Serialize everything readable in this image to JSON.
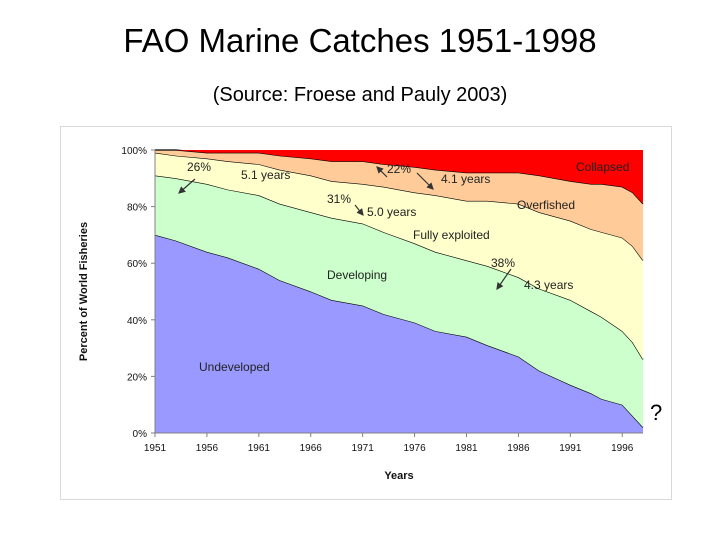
{
  "slide": {
    "title": "FAO Marine Catches 1951-1998",
    "subtitle": "(Source: Froese and Pauly 2003)",
    "question_mark": "?"
  },
  "chart_data": {
    "type": "area",
    "stacked": true,
    "x": [
      1951,
      1953,
      1956,
      1958,
      1961,
      1963,
      1966,
      1968,
      1971,
      1973,
      1976,
      1978,
      1981,
      1983,
      1986,
      1988,
      1991,
      1993,
      1994,
      1996,
      1997,
      1998
    ],
    "series": [
      {
        "name": "Undeveloped",
        "color": "#9999ff",
        "values": [
          70,
          68,
          64,
          62,
          58,
          54,
          50,
          47,
          45,
          42,
          39,
          36,
          34,
          31,
          27,
          22,
          17,
          14,
          12,
          10,
          6,
          2
        ]
      },
      {
        "name": "Developing",
        "color": "#ccffcc",
        "values": [
          21,
          22,
          24,
          24,
          26,
          27,
          28,
          29,
          29,
          29,
          28,
          28,
          27,
          28,
          28,
          29,
          30,
          29,
          29,
          26,
          26,
          24
        ]
      },
      {
        "name": "Fully exploited",
        "color": "#ffffcc",
        "values": [
          8,
          8,
          9,
          10,
          11,
          12,
          13,
          13,
          14,
          16,
          18,
          20,
          21,
          23,
          26,
          27,
          28,
          29,
          30,
          33,
          34,
          35
        ]
      },
      {
        "name": "Overfished",
        "color": "#ffcc99",
        "values": [
          1,
          2,
          2,
          3,
          4,
          5,
          6,
          7,
          8,
          8,
          9,
          9,
          10,
          10,
          11,
          13,
          14,
          16,
          17,
          18,
          19,
          20
        ]
      },
      {
        "name": "Collapsed",
        "color": "#ff0000",
        "values": [
          0,
          0,
          1,
          1,
          1,
          2,
          3,
          4,
          4,
          5,
          6,
          7,
          8,
          8,
          8,
          9,
          11,
          12,
          12,
          13,
          15,
          19
        ]
      }
    ],
    "xticks": [
      "1951",
      "1956",
      "1961",
      "1966",
      "1971",
      "1976",
      "1981",
      "1986",
      "1991",
      "1996"
    ],
    "yticks": [
      "0%",
      "20%",
      "40%",
      "60%",
      "80%",
      "100%"
    ],
    "ylim": [
      0,
      100
    ],
    "xlabel": "Years",
    "ylabel": "Percent of World Fisheries",
    "annotations": [
      {
        "id": "pct-26",
        "text": "26%"
      },
      {
        "id": "yrs-5-1",
        "text": "5.1 years"
      },
      {
        "id": "pct-22",
        "text": "22%"
      },
      {
        "id": "yrs-4-1",
        "text": "4.1 years"
      },
      {
        "id": "pct-31",
        "text": "31%"
      },
      {
        "id": "yrs-5-0",
        "text": "5.0 years"
      },
      {
        "id": "pct-38",
        "text": "38%"
      },
      {
        "id": "yrs-4-3",
        "text": "4.3 years"
      },
      {
        "id": "lbl-collapsed",
        "text": "Collapsed"
      },
      {
        "id": "lbl-overfished",
        "text": "Overfished"
      },
      {
        "id": "lbl-fully",
        "text": "Fully exploited"
      },
      {
        "id": "lbl-developing",
        "text": "Developing"
      },
      {
        "id": "lbl-undeveloped",
        "text": "Undeveloped"
      }
    ]
  }
}
